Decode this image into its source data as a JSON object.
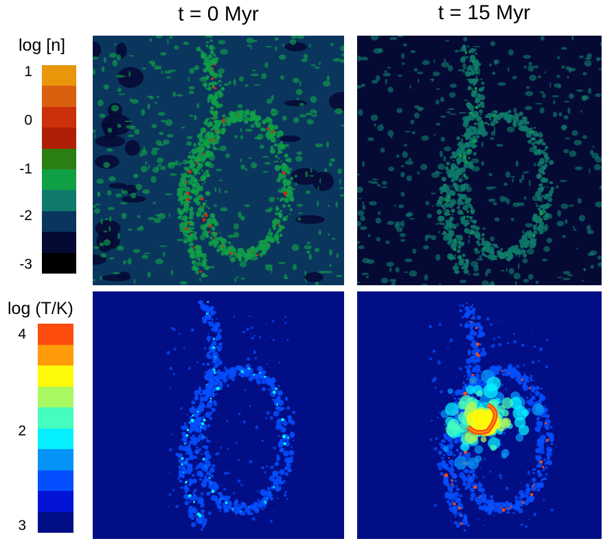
{
  "columns": [
    {
      "title": "t = 0 Myr"
    },
    {
      "title": "t = 15 Myr"
    }
  ],
  "colorbars": [
    {
      "title": "log [n]",
      "ticks": [
        "1",
        "0",
        "-1",
        "-2",
        "-3"
      ],
      "colors": [
        "#E9960B",
        "#DA6010",
        "#CC2F0C",
        "#AF1F06",
        "#2C7F12",
        "#0FA046",
        "#0F7A6A",
        "#0A365E",
        "#050A35",
        "#000000"
      ]
    },
    {
      "title": "log (T/K)",
      "ticks": [
        "4",
        "2",
        "3"
      ],
      "colors": [
        "#FF4C0F",
        "#FF9B08",
        "#FFF90A",
        "#A8F961",
        "#45FDBC",
        "#05EFFF",
        "#0794F8",
        "#044FFF",
        "#0314D6",
        "#020E85"
      ]
    }
  ],
  "chart_data": [
    {
      "type": "heatmap",
      "quantity": "log [n]",
      "time": "t = 0 Myr",
      "background": "#0A365E",
      "void": "#050A35",
      "filament": "#0FA046",
      "core": "#CC2F0C"
    },
    {
      "type": "heatmap",
      "quantity": "log [n]",
      "time": "t = 15 Myr",
      "background": "#050A35",
      "void": "#050A35",
      "filament": "#0F7A6A",
      "core": "#0FA046"
    },
    {
      "type": "heatmap",
      "quantity": "log (T/K)",
      "time": "t = 0 Myr",
      "background": "#020E85",
      "filament": "#044FFF",
      "core": "#05EFFF"
    },
    {
      "type": "heatmap",
      "quantity": "log (T/K)",
      "time": "t = 15 Myr",
      "background": "#020E85",
      "filament": "#044FFF",
      "core": "#FF4C0F"
    }
  ]
}
